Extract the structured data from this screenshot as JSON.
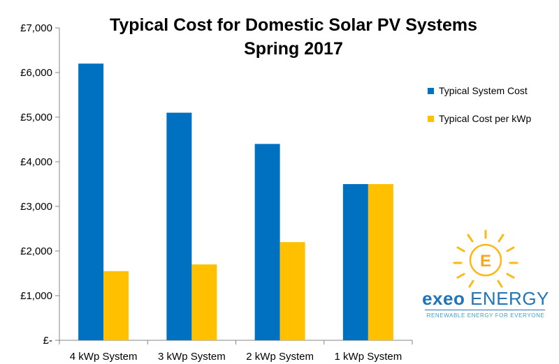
{
  "chart_data": {
    "type": "bar",
    "title": "Typical Cost for Domestic Solar PV Systems",
    "subtitle": "Spring 2017",
    "categories": [
      "4 kWp System",
      "3 kWp System",
      "2 kWp System",
      "1 kWp System"
    ],
    "series": [
      {
        "name": "Typical System Cost",
        "color": "#0070C0",
        "values": [
          6200,
          5100,
          4400,
          3500
        ]
      },
      {
        "name": "Typical Cost per kWp",
        "color": "#FFC000",
        "values": [
          1550,
          1700,
          2200,
          3500
        ]
      }
    ],
    "ylim": [
      0,
      7000
    ],
    "yticks": [
      0,
      1000,
      2000,
      3000,
      4000,
      5000,
      6000,
      7000
    ],
    "ytick_labels": [
      "£-",
      "£1,000",
      "£2,000",
      "£3,000",
      "£4,000",
      "£5,000",
      "£6,000",
      "£7,000"
    ],
    "grid": false,
    "legend_position": "right"
  },
  "logo": {
    "letter": "E",
    "word1": "exeo",
    "word2": "ENERGY",
    "tagline": "RENEWABLE ENERGY FOR EVERYONE",
    "sun_color": "#FDB913",
    "text_color": "#1F75B8"
  }
}
